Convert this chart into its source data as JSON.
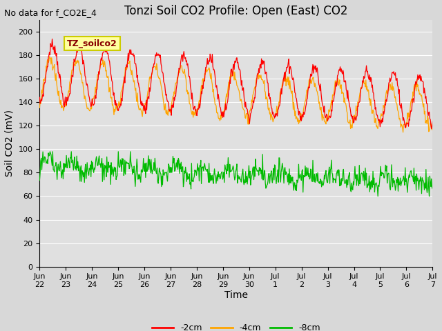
{
  "title": "Tonzi Soil CO2 Profile: Open (East) CO2",
  "top_left_note": "No data for f_CO2E_4",
  "ylabel": "Soil CO2 (mV)",
  "xlabel": "Time",
  "legend_label": "TZ_soilco2",
  "ylim": [
    0,
    210
  ],
  "yticks": [
    0,
    20,
    40,
    60,
    80,
    100,
    120,
    140,
    160,
    180,
    200
  ],
  "xtick_labels": [
    "Jun\n22",
    "Jun\n23",
    "Jun\n24",
    "Jun\n25",
    "Jun\n26",
    "Jun\n27",
    "Jun\n28",
    "Jun\n29",
    "Jun\n30",
    "Jul\n1",
    "Jul\n2",
    "Jul\n3",
    "Jul\n4",
    "Jul\n5",
    "Jul\n6",
    "Jul\n7"
  ],
  "series_colors": [
    "#ff0000",
    "#ffa500",
    "#00bb00"
  ],
  "series_labels": [
    "-2cm",
    "-4cm",
    "-8cm"
  ],
  "background_color": "#d8d8d8",
  "plot_bg_color": "#e0e0e0",
  "legend_box_color": "#ffffa0",
  "legend_box_edge": "#cccc00",
  "legend_text_color": "#880000",
  "grid_color": "#ffffff",
  "title_fontsize": 12,
  "note_fontsize": 9,
  "axis_fontsize": 10,
  "tick_fontsize": 8,
  "legend_fontsize": 9,
  "n_points": 720,
  "num_days": 15
}
